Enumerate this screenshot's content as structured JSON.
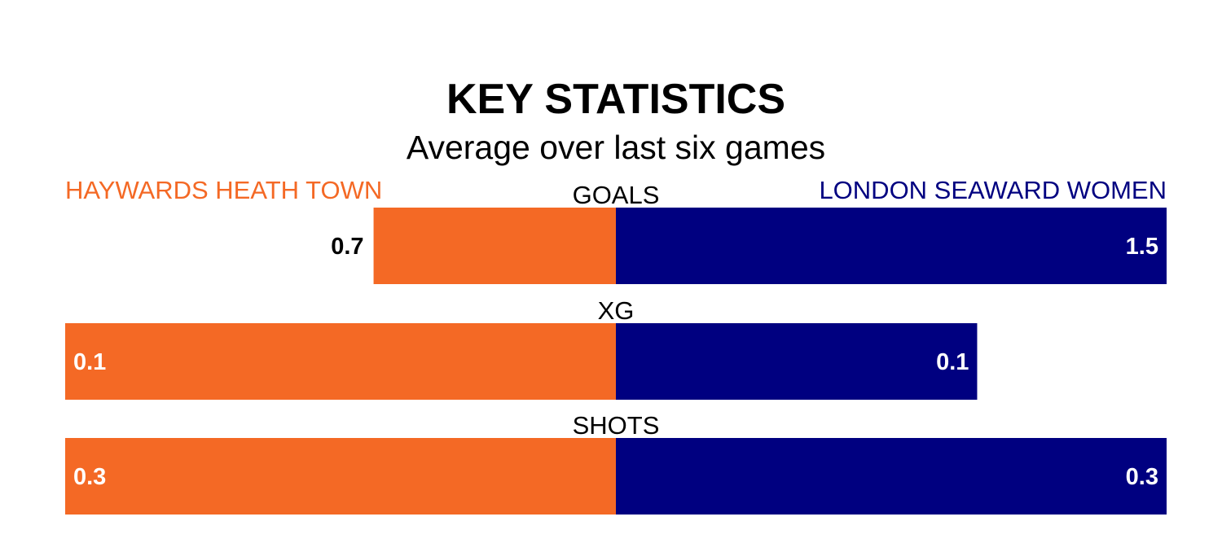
{
  "colors": {
    "home": "#f46925",
    "away": "#000080",
    "text": "#000000",
    "inner_text": "#ffffff"
  },
  "chart_data": {
    "type": "bar",
    "orientation": "horizontal-diverging",
    "title": "KEY STATISTICS",
    "subtitle": "Average over last six games",
    "teams": {
      "home": "HAYWARDS HEATH TOWN",
      "away": "LONDON SEAWARD WOMEN"
    },
    "categories": [
      "GOALS",
      "XG",
      "SHOTS"
    ],
    "series": [
      {
        "name": "HAYWARDS HEATH TOWN",
        "values": [
          0.7,
          0.1,
          0.3
        ],
        "labels": [
          "0.7",
          "0.1",
          "0.3"
        ]
      },
      {
        "name": "LONDON SEAWARD WOMEN",
        "values": [
          1.5,
          0.1,
          0.3
        ],
        "labels": [
          "1.5",
          "0.1",
          "0.3"
        ]
      }
    ],
    "relative_share": [
      {
        "home": 0.44,
        "away": 1.0
      },
      {
        "home": 1.0,
        "away": 0.656
      },
      {
        "home": 1.0,
        "away": 1.0
      }
    ]
  }
}
